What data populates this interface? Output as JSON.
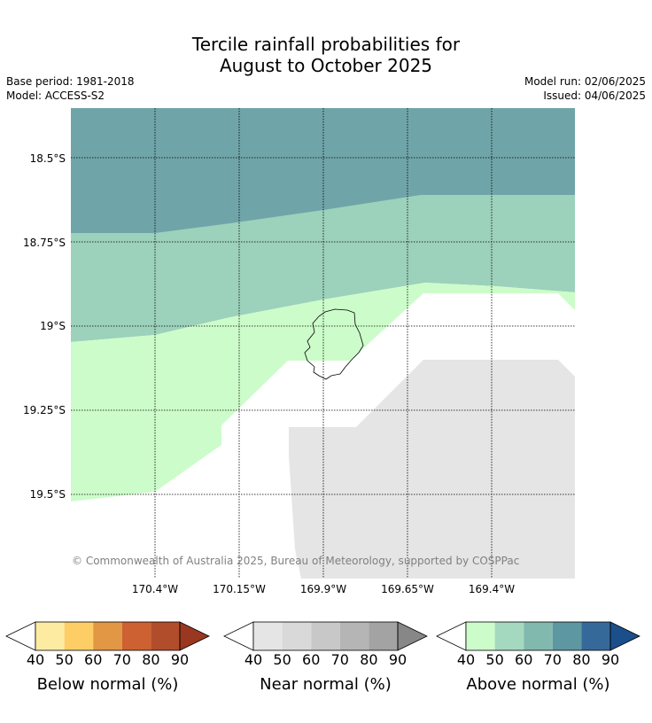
{
  "title": {
    "line1": "Tercile rainfall probabilities for",
    "line2": "August to October 2025"
  },
  "meta": {
    "base_period": "Base period: 1981-2018",
    "model": "Model: ACCESS-S2",
    "model_run": "Model run: 02/06/2025",
    "issued": "Issued: 04/06/2025"
  },
  "map": {
    "lat_labels": [
      "18.5°S",
      "18.75°S",
      "19°S",
      "19.25°S",
      "19.5°S"
    ],
    "lon_labels": [
      "170.4°W",
      "170.15°W",
      "169.9°W",
      "169.65°W",
      "169.4°W"
    ],
    "copyright": "© Commonwealth of Australia 2025, Bureau of Meteorology, supported by COSPPac",
    "colors": {
      "above_70": "#6fa5a8",
      "above_60": "#9cd1bb",
      "above_50": "#ccfcca",
      "near_50": "#e5e5e5",
      "gridline": "#000000"
    }
  },
  "legends": [
    {
      "name": "below",
      "label": "Below normal (%)",
      "ticks": [
        "40",
        "50",
        "60",
        "70",
        "80",
        "90"
      ],
      "colors": [
        "#ffffff",
        "#feeba2",
        "#fece66",
        "#e29745",
        "#cd6132",
        "#b14d2a",
        "#993720"
      ]
    },
    {
      "name": "near",
      "label": "Near normal (%)",
      "ticks": [
        "40",
        "50",
        "60",
        "70",
        "80",
        "90"
      ],
      "colors": [
        "#ffffff",
        "#e5e5e5",
        "#d9d9d9",
        "#c8c8c8",
        "#b5b5b5",
        "#a3a3a3",
        "#878787"
      ]
    },
    {
      "name": "above",
      "label": "Above normal (%)",
      "ticks": [
        "40",
        "50",
        "60",
        "70",
        "80",
        "90"
      ],
      "colors": [
        "#ffffff",
        "#ccfcca",
        "#a5d9bf",
        "#82b9ae",
        "#5d97a1",
        "#35699a",
        "#1b4f8c"
      ]
    }
  ]
}
